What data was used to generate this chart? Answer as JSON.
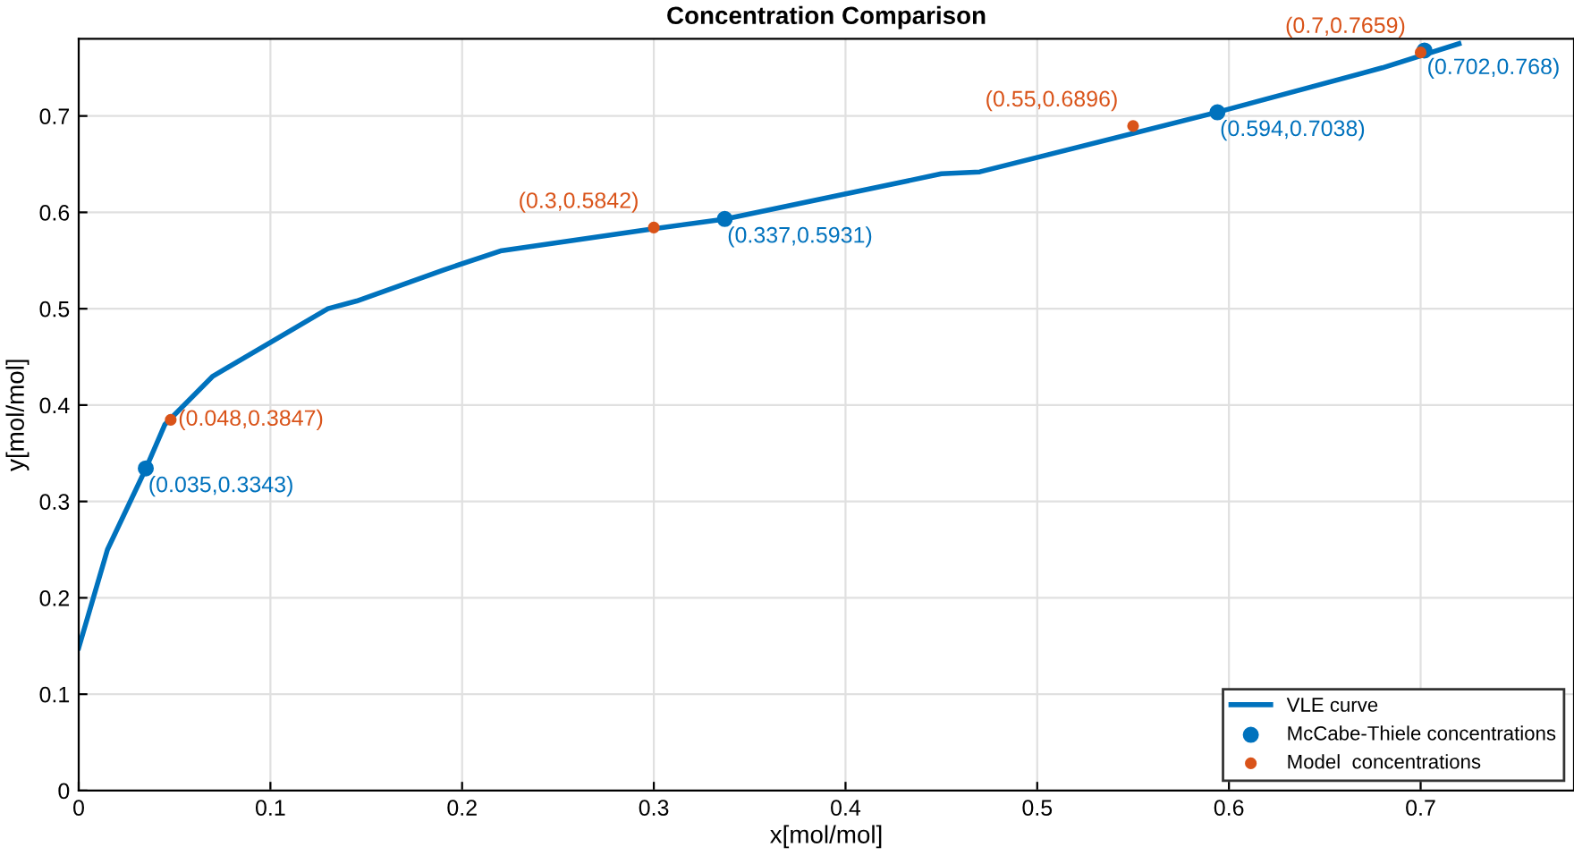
{
  "chart_data": {
    "type": "line",
    "title": "Concentration Comparison",
    "xlabel": "x[mol/mol]",
    "ylabel": "y[mol/mol]",
    "xlim": [
      0,
      0.78
    ],
    "ylim": [
      0,
      0.78
    ],
    "xticks": [
      0,
      0.1,
      0.2,
      0.3,
      0.4,
      0.5,
      0.6,
      0.7
    ],
    "yticks": [
      0,
      0.1,
      0.2,
      0.3,
      0.4,
      0.5,
      0.6,
      0.7
    ],
    "grid": true,
    "legend": "bottom right",
    "series": [
      {
        "name": "VLE curve",
        "color": "#0072bd",
        "marker": "none",
        "x": [
          0,
          0.015,
          0.035,
          0.045,
          0.07,
          0.13,
          0.145,
          0.19,
          0.22,
          0.3,
          0.337,
          0.45,
          0.47,
          0.594,
          0.68,
          0.72
        ],
        "values": [
          0.148,
          0.25,
          0.334,
          0.38,
          0.43,
          0.5,
          0.508,
          0.54,
          0.56,
          0.583,
          0.593,
          0.64,
          0.642,
          0.704,
          0.75,
          0.775
        ]
      },
      {
        "name": "McCabe-Thiele concentrations",
        "color": "#0072bd",
        "type": "scatter",
        "marker": "circle",
        "x": [
          0.035,
          0.337,
          0.594,
          0.702
        ],
        "values": [
          0.3343,
          0.5931,
          0.7038,
          0.768
        ]
      },
      {
        "name": "Model  concentrations",
        "color": "#d95319",
        "type": "scatter",
        "marker": "circle",
        "x": [
          0.048,
          0.3,
          0.55,
          0.7
        ],
        "values": [
          0.3847,
          0.5842,
          0.6896,
          0.7659
        ]
      }
    ],
    "annotations": [
      {
        "text": "(0.035,0.3343)",
        "x": 0.035,
        "y": 0.3343
      },
      {
        "text": "(0.337,0.5931)",
        "x": 0.337,
        "y": 0.5931
      },
      {
        "text": "(0.594,0.7038)",
        "x": 0.594,
        "y": 0.7038
      },
      {
        "text": "(0.702,0.768)",
        "x": 0.702,
        "y": 0.768
      },
      {
        "text": "(0.048,0.3847)",
        "x": 0.048,
        "y": 0.3847
      },
      {
        "text": "(0.3,0.5842)",
        "x": 0.3,
        "y": 0.5842
      },
      {
        "text": "(0.55,0.6896)",
        "x": 0.55,
        "y": 0.6896
      },
      {
        "text": "(0.7,0.7659)",
        "x": 0.7,
        "y": 0.7659
      }
    ]
  }
}
